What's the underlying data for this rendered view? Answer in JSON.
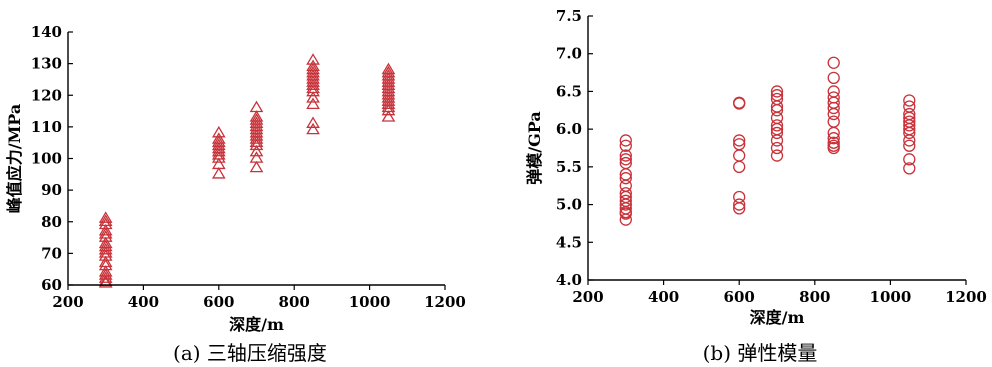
{
  "colors": {
    "marker": "#c8323a",
    "axis": "#000000"
  },
  "chart_data": [
    {
      "type": "scatter",
      "marker": "triangle",
      "caption": "(a)  三轴压缩强度",
      "xlabel": "深度/m",
      "ylabel": "峰值应力/MPa",
      "xlim": [
        200,
        1200
      ],
      "ylim": [
        60,
        140
      ],
      "xticks": [
        200,
        400,
        600,
        800,
        1000,
        1200
      ],
      "yticks": [
        60,
        70,
        80,
        90,
        100,
        110,
        120,
        130,
        140
      ],
      "grid": false,
      "series": [
        {
          "x": [
            300,
            300,
            300,
            300,
            300,
            300,
            300,
            300,
            300,
            300,
            300,
            300,
            300,
            300,
            300,
            300,
            300,
            300,
            600,
            600,
            600,
            600,
            600,
            600,
            600,
            600,
            600,
            600,
            700,
            700,
            700,
            700,
            700,
            700,
            700,
            700,
            700,
            700,
            700,
            700,
            700,
            700,
            850,
            850,
            850,
            850,
            850,
            850,
            850,
            850,
            850,
            850,
            850,
            850,
            850,
            850,
            1050,
            1050,
            1050,
            1050,
            1050,
            1050,
            1050,
            1050,
            1050,
            1050,
            1050,
            1050,
            1050,
            1050,
            1050
          ],
          "y": [
            81,
            79,
            77,
            75,
            73,
            71,
            69,
            66,
            64,
            62,
            60.5,
            80,
            76,
            72,
            70,
            67,
            63,
            61,
            108,
            106,
            104,
            103,
            102,
            101,
            100,
            98,
            95,
            105,
            116,
            113,
            111,
            110,
            109,
            108,
            107,
            106,
            105,
            104,
            102,
            100,
            97,
            112,
            131,
            129,
            127,
            126,
            125,
            124,
            123,
            121,
            119,
            117,
            111,
            109,
            128,
            122,
            128,
            127,
            126,
            124,
            123,
            122,
            121,
            120,
            119,
            118,
            117,
            116,
            115,
            113,
            125
          ]
        }
      ]
    },
    {
      "type": "scatter",
      "marker": "circle",
      "caption": "(b)  弹性模量",
      "xlabel": "深度/m",
      "ylabel": "弹模/GPa",
      "xlim": [
        200,
        1200
      ],
      "ylim": [
        4.0,
        7.5
      ],
      "xticks": [
        200,
        400,
        600,
        800,
        1000,
        1200
      ],
      "yticks": [
        4.0,
        4.5,
        5.0,
        5.5,
        6.0,
        6.5,
        7.0,
        7.5
      ],
      "grid": false,
      "series": [
        {
          "x": [
            300,
            300,
            300,
            300,
            300,
            300,
            300,
            300,
            300,
            300,
            300,
            300,
            300,
            300,
            300,
            300,
            600,
            600,
            600,
            600,
            600,
            600,
            600,
            600,
            600,
            700,
            700,
            700,
            700,
            700,
            700,
            700,
            700,
            700,
            700,
            700,
            700,
            850,
            850,
            850,
            850,
            850,
            850,
            850,
            850,
            850,
            850,
            850,
            850,
            850,
            1050,
            1050,
            1050,
            1050,
            1050,
            1050,
            1050,
            1050,
            1050,
            1050,
            1050,
            1050
          ],
          "y": [
            5.85,
            5.78,
            5.65,
            5.55,
            5.4,
            5.25,
            5.15,
            5.05,
            4.95,
            4.88,
            4.8,
            5.6,
            5.35,
            5.1,
            5.0,
            4.9,
            6.35,
            6.34,
            5.85,
            5.8,
            5.65,
            5.5,
            5.1,
            5.0,
            4.95,
            6.5,
            6.45,
            6.4,
            6.3,
            6.25,
            6.15,
            6.05,
            6.0,
            5.95,
            5.85,
            5.75,
            5.65,
            6.88,
            6.68,
            6.5,
            6.42,
            6.35,
            6.28,
            6.2,
            5.95,
            5.88,
            5.82,
            5.78,
            5.75,
            6.1,
            6.38,
            6.3,
            6.2,
            6.1,
            6.05,
            5.95,
            5.85,
            5.78,
            5.6,
            5.48,
            6.15,
            6.0
          ]
        }
      ]
    }
  ]
}
